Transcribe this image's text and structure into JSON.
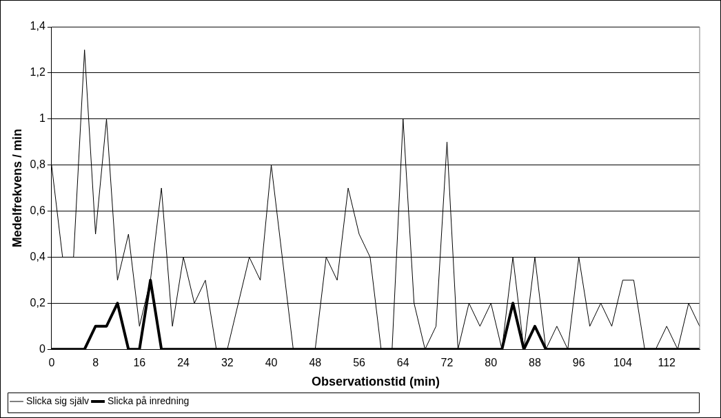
{
  "chart_data": {
    "type": "line",
    "xlabel": "Observationstid (min)",
    "ylabel": "Medelfrekvens / min",
    "categories": [
      "0",
      null,
      null,
      null,
      "8",
      null,
      null,
      null,
      "16",
      null,
      null,
      null,
      "24",
      null,
      null,
      null,
      "32",
      null,
      null,
      null,
      "40",
      null,
      null,
      null,
      "48",
      null,
      null,
      null,
      "56",
      null,
      null,
      null,
      "64",
      null,
      null,
      null,
      "72",
      null,
      null,
      null,
      "80",
      null,
      null,
      null,
      "88",
      null,
      null,
      null,
      "96",
      null,
      null,
      null,
      "104",
      null,
      null,
      null,
      "112",
      null,
      null,
      null
    ],
    "series": [
      {
        "name": "Slicka sig själv",
        "color": "#000000",
        "values": [
          0.8,
          0.4,
          0.4,
          1.3,
          0.5,
          1.0,
          0.3,
          0.5,
          0.1,
          0.3,
          0.7,
          0.1,
          0.4,
          0.2,
          0.3,
          0,
          0,
          0.2,
          0.4,
          0.3,
          0.8,
          0.4,
          0,
          0,
          0,
          0.4,
          0.3,
          0.7,
          0.5,
          0.4,
          0,
          0,
          1.0,
          0.2,
          0,
          0.1,
          0.9,
          0,
          0.2,
          0.1,
          0.2,
          0,
          0.4,
          0,
          0.4,
          0,
          0.1,
          0,
          0.4,
          0.1,
          0.2,
          0.1,
          0.3,
          0.3,
          0,
          0,
          0.1,
          0,
          0.2,
          0.1
        ]
      },
      {
        "name": "Slicka på inredning",
        "color": "#000000",
        "values": [
          0,
          0,
          0,
          0,
          0.1,
          0.1,
          0.2,
          0,
          0,
          0.3,
          0,
          0,
          0,
          0,
          0,
          0,
          0,
          0,
          0,
          0,
          0,
          0,
          0,
          0,
          0,
          0,
          0,
          0,
          0,
          0,
          0,
          0,
          0,
          0,
          0,
          0,
          0,
          0,
          0,
          0,
          0,
          0,
          0.2,
          0,
          0.1,
          0,
          0,
          0,
          0,
          0,
          0,
          0,
          0,
          0,
          0,
          0,
          0,
          0,
          0,
          0
        ]
      }
    ],
    "ylim": [
      0,
      1.4
    ],
    "yticks": [
      0,
      {
        "value": 0.2,
        "label": "0,2"
      },
      {
        "value": 0.4,
        "label": "0,4"
      },
      {
        "value": 0.6,
        "label": "0,6"
      },
      {
        "value": 0.8,
        "label": "0,8"
      },
      1,
      {
        "value": 1.2,
        "label": "1,2"
      },
      {
        "value": 1.4,
        "label": "1,4"
      }
    ],
    "grid": "y",
    "legend": "bottom",
    "marker": "none",
    "line_style": "solid"
  }
}
